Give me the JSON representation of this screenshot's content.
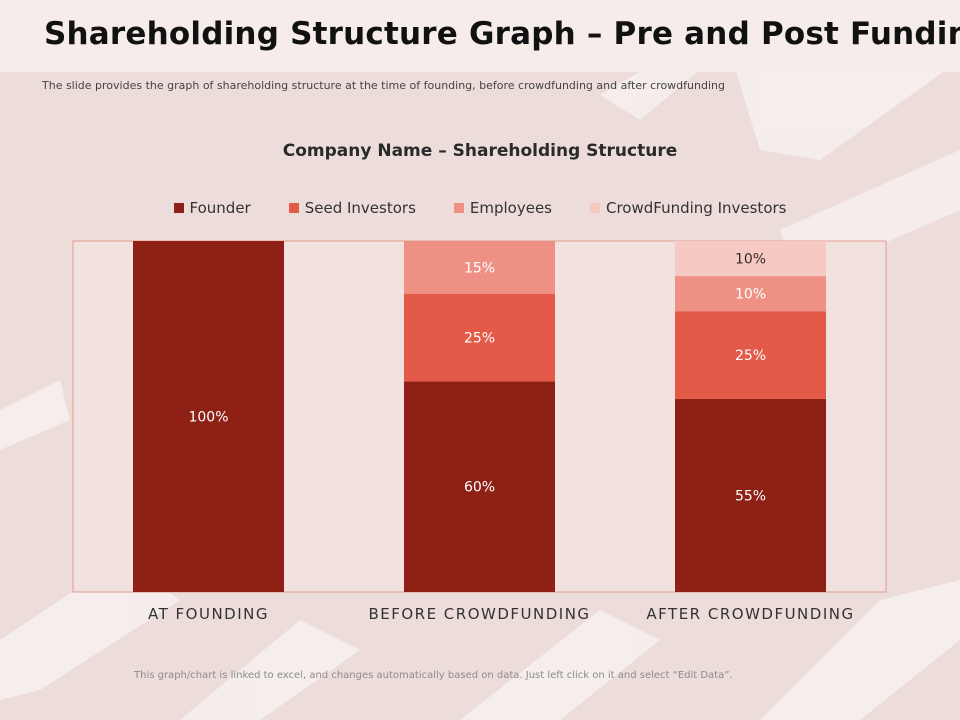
{
  "header": {
    "title": "Shareholding Structure Graph – Pre and Post Funding",
    "subtitle": "The slide provides the graph of shareholding structure at the time of founding,  before crowdfunding  and after crowdfunding"
  },
  "footnote": "This graph/chart is linked to excel, and changes automatically based on data. Just left click on it and select “Edit Data”.",
  "chart_data": {
    "type": "bar",
    "stacked": true,
    "title": "Company Name – Shareholding Structure",
    "categories": [
      "AT FOUNDING",
      "BEFORE CROWDFUNDING",
      "AFTER CROWDFUNDING"
    ],
    "series": [
      {
        "name": "Founder",
        "values": [
          100,
          60,
          55
        ],
        "labels": [
          "100%",
          "60%",
          "55%"
        ],
        "color": "#8e2015"
      },
      {
        "name": "Seed Investors",
        "values": [
          0,
          25,
          25
        ],
        "labels": [
          "",
          "25%",
          "25%"
        ],
        "color": "#e35a48"
      },
      {
        "name": "Employees",
        "values": [
          0,
          15,
          10
        ],
        "labels": [
          "",
          "15%",
          "10%"
        ],
        "color": "#ee9184"
      },
      {
        "name": "CrowdFunding Investors",
        "values": [
          0,
          0,
          10
        ],
        "labels": [
          "",
          "",
          "10%"
        ],
        "color": "#f6c9c3"
      }
    ],
    "ylim": [
      0,
      100
    ],
    "legend_position": "top",
    "grid": false,
    "xlabel": "",
    "ylabel": ""
  },
  "colors": {
    "background": "#ecdcda",
    "plot_background": "#f1e1df",
    "plot_border": "#e59a8e"
  }
}
